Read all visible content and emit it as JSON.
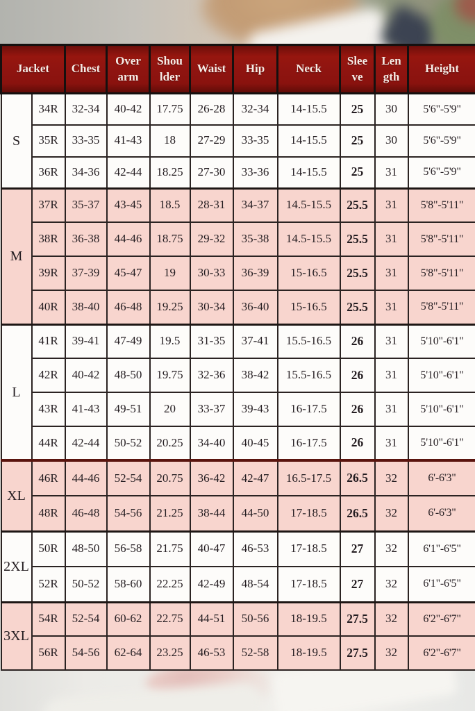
{
  "colors": {
    "maroon": "#8e1410",
    "pink": "#f8d5ce",
    "white-row": "#fdfcfa",
    "grid-line": "#2b2322",
    "header-text": "#f6ece6"
  },
  "header_labels": [
    "Jacket",
    "Chest",
    "Over\narm",
    "Shou\nlder",
    "Waist",
    "Hip",
    "Neck",
    "Slee\nve",
    "Len\ngth",
    "Height"
  ],
  "chart_data": {
    "type": "table",
    "columns": [
      "Jacket",
      "Chest",
      "Over arm",
      "Shoulder",
      "Waist",
      "Hip",
      "Neck",
      "Sleeve",
      "Length",
      "Height"
    ],
    "sections": [
      {
        "label": "S",
        "tone": "white",
        "rows": [
          [
            "34R",
            "32-34",
            "40-42",
            "17.75",
            "26-28",
            "32-34",
            "14-15.5",
            "25",
            "30",
            "5'6\"-5'9\""
          ],
          [
            "35R",
            "33-35",
            "41-43",
            "18",
            "27-29",
            "33-35",
            "14-15.5",
            "25",
            "30",
            "5'6\"-5'9\""
          ],
          [
            "36R",
            "34-36",
            "42-44",
            "18.25",
            "27-30",
            "33-36",
            "14-15.5",
            "25",
            "31",
            "5'6\"-5'9\""
          ]
        ]
      },
      {
        "label": "M",
        "tone": "pink",
        "rows": [
          [
            "37R",
            "35-37",
            "43-45",
            "18.5",
            "28-31",
            "34-37",
            "14.5-15.5",
            "25.5",
            "31",
            "5'8\"-5'11\""
          ],
          [
            "38R",
            "36-38",
            "44-46",
            "18.75",
            "29-32",
            "35-38",
            "14.5-15.5",
            "25.5",
            "31",
            "5'8\"-5'11\""
          ],
          [
            "39R",
            "37-39",
            "45-47",
            "19",
            "30-33",
            "36-39",
            "15-16.5",
            "25.5",
            "31",
            "5'8\"-5'11\""
          ],
          [
            "40R",
            "38-40",
            "46-48",
            "19.25",
            "30-34",
            "36-40",
            "15-16.5",
            "25.5",
            "31",
            "5'8\"-5'11\""
          ]
        ]
      },
      {
        "label": "L",
        "tone": "white",
        "rows": [
          [
            "41R",
            "39-41",
            "47-49",
            "19.5",
            "31-35",
            "37-41",
            "15.5-16.5",
            "26",
            "31",
            "5'10\"-6'1\""
          ],
          [
            "42R",
            "40-42",
            "48-50",
            "19.75",
            "32-36",
            "38-42",
            "15.5-16.5",
            "26",
            "31",
            "5'10\"-6'1\""
          ],
          [
            "43R",
            "41-43",
            "49-51",
            "20",
            "33-37",
            "39-43",
            "16-17.5",
            "26",
            "31",
            "5'10\"-6'1\""
          ],
          [
            "44R",
            "42-44",
            "50-52",
            "20.25",
            "34-40",
            "40-45",
            "16-17.5",
            "26",
            "31",
            "5'10\"-6'1\""
          ]
        ]
      },
      {
        "label": "XL",
        "tone": "pink",
        "rows": [
          [
            "46R",
            "44-46",
            "52-54",
            "20.75",
            "36-42",
            "42-47",
            "16.5-17.5",
            "26.5",
            "32",
            "6'-6'3\""
          ],
          [
            "48R",
            "46-48",
            "54-56",
            "21.25",
            "38-44",
            "44-50",
            "17-18.5",
            "26.5",
            "32",
            "6'-6'3\""
          ]
        ]
      },
      {
        "label": "2XL",
        "tone": "white",
        "rows": [
          [
            "50R",
            "48-50",
            "56-58",
            "21.75",
            "40-47",
            "46-53",
            "17-18.5",
            "27",
            "32",
            "6'1\"-6'5\""
          ],
          [
            "52R",
            "50-52",
            "58-60",
            "22.25",
            "42-49",
            "48-54",
            "17-18.5",
            "27",
            "32",
            "6'1\"-6'5\""
          ]
        ]
      },
      {
        "label": "3XL",
        "tone": "pink",
        "rows": [
          [
            "54R",
            "52-54",
            "60-62",
            "22.75",
            "44-51",
            "50-56",
            "18-19.5",
            "27.5",
            "32",
            "6'2\"-6'7\""
          ],
          [
            "56R",
            "54-56",
            "62-64",
            "23.25",
            "46-53",
            "52-58",
            "18-19.5",
            "27.5",
            "32",
            "6'2\"-6'7\""
          ]
        ]
      }
    ]
  }
}
